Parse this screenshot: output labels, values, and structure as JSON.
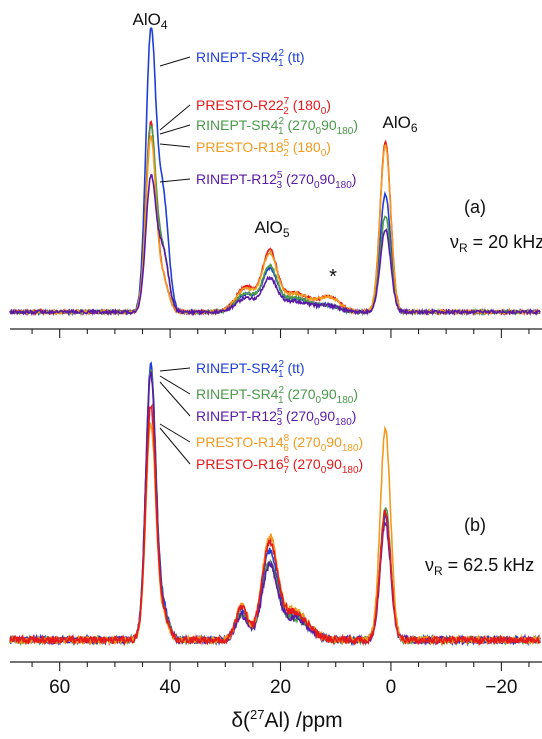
{
  "chart_data": {
    "type": "line",
    "xlabel": "δ(²⁷Al) /ppm",
    "xlim": [
      69,
      -27
    ],
    "x_ticks": [
      60,
      40,
      20,
      0,
      -20
    ],
    "x_tick_labels": [
      "60",
      "40",
      "20",
      "0",
      "−20"
    ],
    "colors": {
      "blue": "#1f3fd6",
      "red": "#e41a1c",
      "green": "#4a9a4a",
      "orange": "#f39a1e",
      "purple": "#5a1aa8"
    },
    "panels": [
      {
        "id": "a",
        "panel_label": "(a)",
        "spinning_rate": "20 kHz",
        "peak_labels": [
          {
            "text": "AlO4",
            "x": 43.5
          },
          {
            "text": "AlO5",
            "x": 22
          },
          {
            "text": "AlO6",
            "x": 1
          },
          {
            "text": "*",
            "x": 11
          }
        ],
        "series": [
          {
            "name": "RINEPT-SR4₁² (tt)",
            "color": "#1f3fd6",
            "peaks": {
              "AlO4": 1.0,
              "AlO4_shoulder": 0.42,
              "AlO5": 0.14,
              "AlO6": 0.43,
              "ssb": 0.02
            }
          },
          {
            "name": "PRESTO-R22₂⁷ (180₀)",
            "color": "#e41a1c",
            "peaks": {
              "AlO4": 0.68,
              "AlO4_shoulder": 0.12,
              "AlO5": 0.2,
              "AlO6": 0.62,
              "ssb": 0.05
            }
          },
          {
            "name": "RINEPT-SR4₁² (270₀90₁₈₀)",
            "color": "#4a9a4a",
            "peaks": {
              "AlO4": 0.66,
              "AlO4_shoulder": 0.22,
              "AlO5": 0.15,
              "AlO6": 0.35,
              "ssb": 0.02
            }
          },
          {
            "name": "PRESTO-R18₂⁵ (180₀)",
            "color": "#f39a1e",
            "peaks": {
              "AlO4": 0.63,
              "AlO4_shoulder": 0.12,
              "AlO5": 0.19,
              "AlO6": 0.61,
              "ssb": 0.05
            }
          },
          {
            "name": "RINEPT-R12₃⁵ (270₀90₁₈₀)",
            "color": "#5a1aa8",
            "peaks": {
              "AlO4": 0.48,
              "AlO4_shoulder": 0.22,
              "AlO5": 0.11,
              "AlO6": 0.3,
              "ssb": 0.02
            }
          }
        ]
      },
      {
        "id": "b",
        "panel_label": "(b)",
        "spinning_rate": "62.5 kHz",
        "peak_labels": [],
        "series": [
          {
            "name": "RINEPT-SR4₁² (tt)",
            "color": "#1f3fd6",
            "peaks": {
              "AlO4": 1.0,
              "AlO4_shoulder": 0.12,
              "AlO5": 0.31,
              "AlO6": 0.46
            }
          },
          {
            "name": "RINEPT-SR4₁² (270₀90₁₈₀)",
            "color": "#4a9a4a",
            "peaks": {
              "AlO4": 0.98,
              "AlO4_shoulder": 0.1,
              "AlO5": 0.27,
              "AlO6": 0.49
            }
          },
          {
            "name": "RINEPT-R12₃⁵ (270₀90₁₈₀)",
            "color": "#5a1aa8",
            "peaks": {
              "AlO4": 0.97,
              "AlO4_shoulder": 0.1,
              "AlO5": 0.26,
              "AlO6": 0.43
            }
          },
          {
            "name": "PRESTO-R14₆⁸ (270₀90₁₈₀)",
            "color": "#f39a1e",
            "peaks": {
              "AlO4": 0.79,
              "AlO4_shoulder": 0.08,
              "AlO5": 0.36,
              "AlO6": 0.77
            }
          },
          {
            "name": "PRESTO-R16₇⁶ (270₀90₁₈₀)",
            "color": "#e41a1c",
            "peaks": {
              "AlO4": 0.86,
              "AlO4_shoulder": 0.09,
              "AlO5": 0.34,
              "AlO6": 0.47
            }
          }
        ]
      }
    ]
  }
}
